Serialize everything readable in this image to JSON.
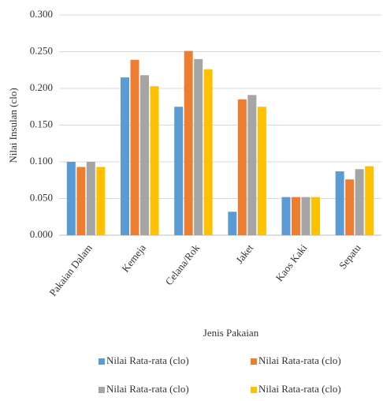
{
  "chart_data": {
    "type": "bar",
    "x_label": "Jenis Pakaian",
    "y_label": "Nilai Insulan (clo)",
    "categories": [
      "Pakaian Dalam",
      "Kemeja",
      "Celana/Rok",
      "Jaket",
      "Kaos Kaki",
      "Sepatu"
    ],
    "series": [
      {
        "name": "Nilai Rata-rata (clo)",
        "color": "#5b9bd5",
        "values": [
          0.1,
          0.215,
          0.175,
          0.032,
          0.052,
          0.087
        ]
      },
      {
        "name": "Nilai Rata-rata (clo)",
        "color": "#ed7d31",
        "values": [
          0.093,
          0.239,
          0.251,
          0.185,
          0.052,
          0.076
        ]
      },
      {
        "name": "Nilai Rata-rata (clo)",
        "color": "#a5a5a5",
        "values": [
          0.1,
          0.218,
          0.24,
          0.191,
          0.052,
          0.09
        ]
      },
      {
        "name": "Nilai Rata-rata (clo)",
        "color": "#ffc000",
        "values": [
          0.093,
          0.203,
          0.226,
          0.175,
          0.052,
          0.094
        ]
      }
    ],
    "ylim": [
      0,
      0.3
    ],
    "yticks": [
      {
        "value": 0,
        "label": "0.000"
      },
      {
        "value": 0.05,
        "label": "0.050"
      },
      {
        "value": 0.1,
        "label": "0.100"
      },
      {
        "value": 0.15,
        "label": "0.150"
      },
      {
        "value": 0.2,
        "label": "0.200"
      },
      {
        "value": 0.25,
        "label": "0.250"
      },
      {
        "value": 0.3,
        "label": "0.300"
      }
    ],
    "grid": true,
    "legend": "bottom"
  }
}
